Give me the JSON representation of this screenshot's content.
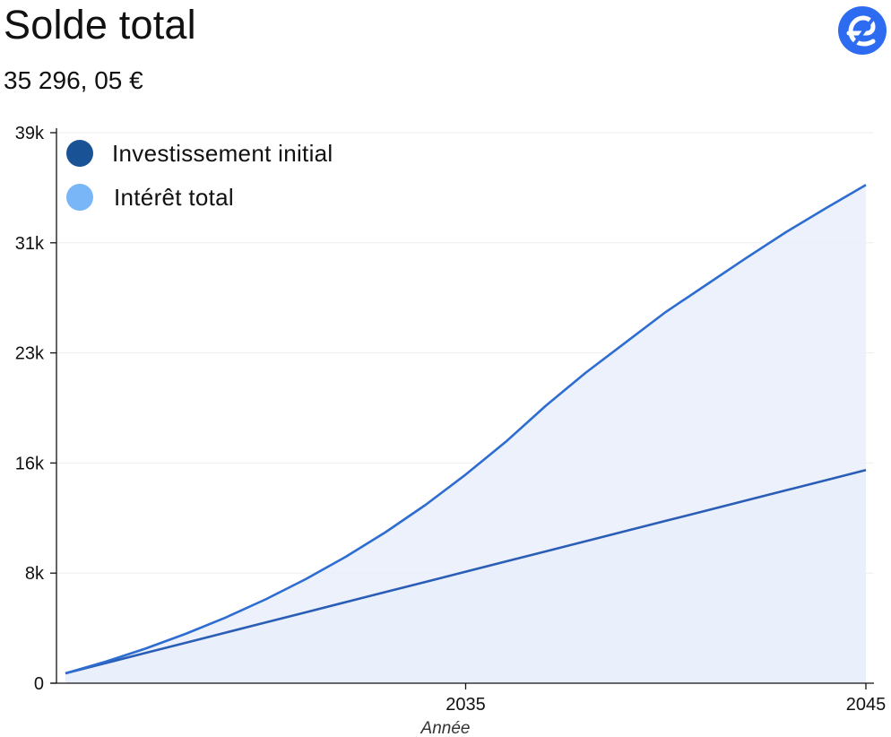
{
  "header": {
    "title": "Solde total",
    "balance": "35 296, 05 €"
  },
  "brand": {
    "logo_icon": "e-logo-icon",
    "color": "#2d6cf0"
  },
  "chart_data": {
    "type": "area",
    "title": "Solde total",
    "xlabel": "Année",
    "ylabel": "",
    "xlim": [
      2025,
      2045
    ],
    "ylim": [
      0,
      39000
    ],
    "x_ticks": [
      {
        "value": 2035,
        "label": "2035"
      },
      {
        "value": 2045,
        "label": "2045"
      }
    ],
    "y_ticks": [
      {
        "value": 0,
        "label": "0"
      },
      {
        "value": 7800,
        "label": "8k"
      },
      {
        "value": 15600,
        "label": "16k"
      },
      {
        "value": 23400,
        "label": "23k"
      },
      {
        "value": 31200,
        "label": "31k"
      },
      {
        "value": 39000,
        "label": "39k"
      }
    ],
    "grid": true,
    "legend_position": "top-left",
    "x": [
      2025,
      2026,
      2027,
      2028,
      2029,
      2030,
      2031,
      2032,
      2033,
      2034,
      2035,
      2036,
      2037,
      2038,
      2039,
      2040,
      2041,
      2042,
      2043,
      2044,
      2045
    ],
    "series": [
      {
        "name": "Investissement initial",
        "color": "#1a5296",
        "values": [
          700,
          1420,
          2140,
          2860,
          3580,
          4300,
          5020,
          5740,
          6460,
          7180,
          7900,
          8620,
          9340,
          10060,
          10780,
          11500,
          12220,
          12940,
          13660,
          14380,
          15100
        ]
      },
      {
        "name": "Intérêt total",
        "color": "#78b6f7",
        "values": [
          700,
          1524,
          2453,
          3491,
          4650,
          5940,
          7370,
          8950,
          10700,
          12640,
          14780,
          17100,
          19650,
          22000,
          24150,
          26300,
          28200,
          30100,
          31950,
          33650,
          35296
        ]
      }
    ],
    "line_color": "#2d6cd0",
    "fill_color": "#e9eefa"
  }
}
